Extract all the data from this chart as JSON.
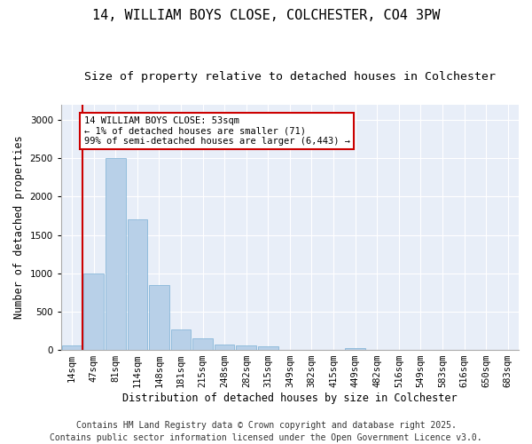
{
  "title": "14, WILLIAM BOYS CLOSE, COLCHESTER, CO4 3PW",
  "subtitle": "Size of property relative to detached houses in Colchester",
  "xlabel": "Distribution of detached houses by size in Colchester",
  "ylabel": "Number of detached properties",
  "bar_color": "#b8d0e8",
  "bar_edge_color": "#7aafd4",
  "vline_color": "#cc0000",
  "annotation_text": "14 WILLIAM BOYS CLOSE: 53sqm\n← 1% of detached houses are smaller (71)\n99% of semi-detached houses are larger (6,443) →",
  "annotation_box_color": "#ffffff",
  "annotation_box_edge": "#cc0000",
  "categories": [
    "14sqm",
    "47sqm",
    "81sqm",
    "114sqm",
    "148sqm",
    "181sqm",
    "215sqm",
    "248sqm",
    "282sqm",
    "315sqm",
    "349sqm",
    "382sqm",
    "415sqm",
    "449sqm",
    "482sqm",
    "516sqm",
    "549sqm",
    "583sqm",
    "616sqm",
    "650sqm",
    "683sqm"
  ],
  "values": [
    60,
    1000,
    2500,
    1700,
    850,
    270,
    150,
    70,
    55,
    45,
    0,
    0,
    0,
    25,
    0,
    0,
    0,
    0,
    0,
    0,
    0
  ],
  "ylim": [
    0,
    3200
  ],
  "yticks": [
    0,
    500,
    1000,
    1500,
    2000,
    2500,
    3000
  ],
  "background_color": "#ffffff",
  "plot_background": "#e8eef8",
  "grid_color": "#ffffff",
  "footer_line1": "Contains HM Land Registry data © Crown copyright and database right 2025.",
  "footer_line2": "Contains public sector information licensed under the Open Government Licence v3.0.",
  "title_fontsize": 11,
  "subtitle_fontsize": 9.5,
  "axis_label_fontsize": 8.5,
  "tick_fontsize": 7.5,
  "footer_fontsize": 7,
  "annot_fontsize": 7.5
}
